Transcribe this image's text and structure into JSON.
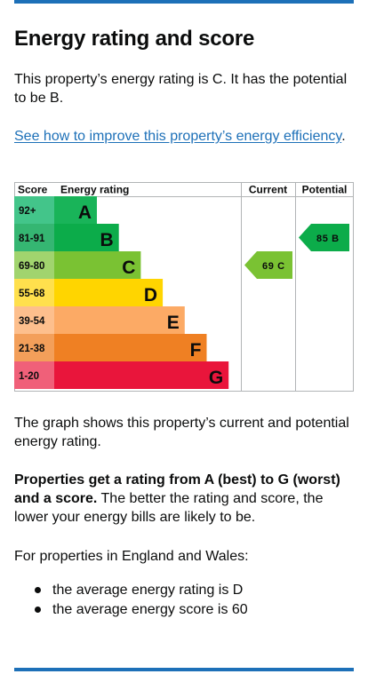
{
  "heading": "Energy rating and score",
  "intro": "This property’s energy rating is C. It has the potential to be B.",
  "link": {
    "text": "See how to improve this property’s energy efficiency",
    "suffix": "."
  },
  "chart_data": {
    "type": "bar",
    "headers": {
      "score": "Score",
      "rating": "Energy rating",
      "current": "Current",
      "potential": "Potential"
    },
    "bands": [
      {
        "range": "92+",
        "letter": "A",
        "color": "#19b459",
        "score_color": "#43c58a"
      },
      {
        "range": "81-91",
        "letter": "B",
        "color": "#0cac4a",
        "score_color": "#35b672"
      },
      {
        "range": "69-80",
        "letter": "C",
        "color": "#7ac233",
        "score_color": "#a1d46e"
      },
      {
        "range": "55-68",
        "letter": "D",
        "color": "#ffd500",
        "score_color": "#ffe04d"
      },
      {
        "range": "39-54",
        "letter": "E",
        "color": "#fcaa65",
        "score_color": "#fdbf8d"
      },
      {
        "range": "21-38",
        "letter": "F",
        "color": "#ef8023",
        "score_color": "#f39f5a"
      },
      {
        "range": "1-20",
        "letter": "G",
        "color": "#e9153b",
        "score_color": "#f06079"
      }
    ],
    "current": {
      "score": 69,
      "letter": "C",
      "label": "69 C",
      "band": "C",
      "color": "#7ac233"
    },
    "potential": {
      "score": 85,
      "letter": "B",
      "label": "85 B",
      "band": "B",
      "color": "#0cac4a"
    }
  },
  "graph_note": "The graph shows this property’s current and potential energy rating.",
  "properties": {
    "bold": "Properties get a rating from A (best) to G (worst) and a score.",
    "rest": " The better the rating and score, the lower your energy bills are likely to be."
  },
  "england_wales": "For properties in England and Wales:",
  "stats": [
    "the average energy rating is D",
    "the average energy score is 60"
  ],
  "colors": {
    "link": "#1d70b8",
    "rule": "#1d70b8",
    "text": "#0b0c0c"
  }
}
